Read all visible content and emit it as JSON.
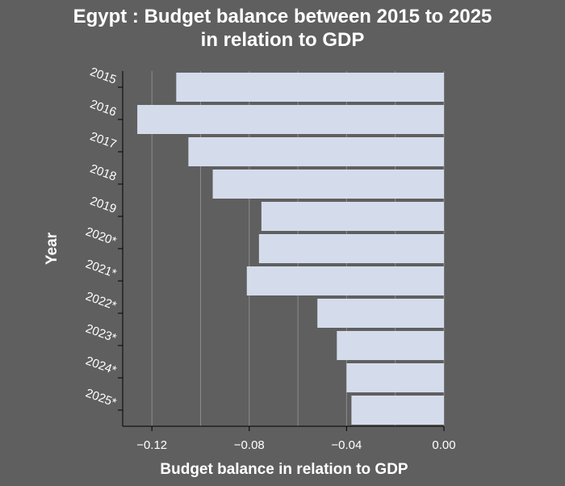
{
  "title_line1": "Egypt : Budget balance between 2015 to 2025",
  "title_line2": "in relation to GDP",
  "chart_data": {
    "type": "bar",
    "orientation": "horizontal",
    "title": "Egypt : Budget balance between 2015 to 2025 in relation to GDP",
    "xlabel": "Budget balance in relation to GDP",
    "ylabel": "Year",
    "categories": [
      "2015",
      "2016",
      "2017",
      "2018",
      "2019",
      "2020*",
      "2021*",
      "2022*",
      "2023*",
      "2024*",
      "2025*"
    ],
    "values": [
      -0.11,
      -0.126,
      -0.105,
      -0.095,
      -0.075,
      -0.076,
      -0.081,
      -0.052,
      -0.044,
      -0.04,
      -0.038
    ],
    "xlim": [
      -0.132,
      0.0
    ],
    "xticks": [
      -0.12,
      -0.08,
      -0.04,
      0.0
    ],
    "xtick_labels": [
      "−0.12",
      "−0.08",
      "−0.04",
      "0.00"
    ],
    "grid": true,
    "colors": {
      "background": "#5f5f5f",
      "bar": "#d4dcec",
      "grid": "#8c8c8c",
      "text": "#ffffff"
    }
  }
}
